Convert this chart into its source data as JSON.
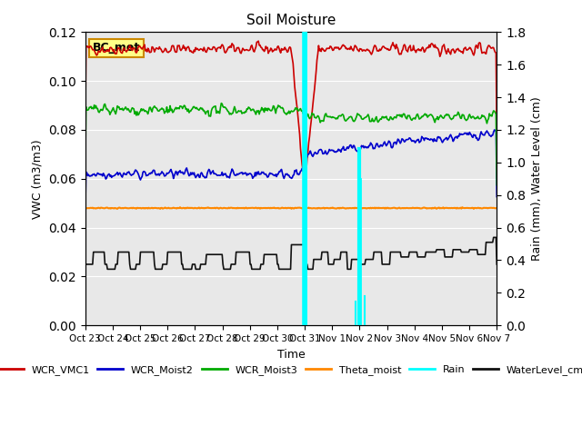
{
  "title": "Soil Moisture",
  "ylabel_left": "VWC (m3/m3)",
  "ylabel_right": "Rain (mm), Water Level (cm)",
  "xlabel": "Time",
  "ylim_left": [
    0.0,
    0.12
  ],
  "ylim_right": [
    0.0,
    1.8
  ],
  "annotation_text": "BC_met",
  "x_tick_labels": [
    "Oct 23",
    "Oct 24",
    "Oct 25",
    "Oct 26",
    "Oct 27",
    "Oct 28",
    "Oct 29",
    "Oct 30",
    "Oct 31",
    "Nov 1",
    "Nov 2",
    "Nov 3",
    "Nov 4",
    "Nov 5",
    "Nov 6",
    "Nov 7"
  ],
  "series": {
    "WCR_VMC1": {
      "color": "#cc0000",
      "lw": 1.2
    },
    "WCR_Moist2": {
      "color": "#0000cc",
      "lw": 1.2
    },
    "WCR_Moist3": {
      "color": "#00aa00",
      "lw": 1.2
    },
    "Theta_moist": {
      "color": "#ff8800",
      "lw": 1.5
    },
    "Rain": {
      "color": "#00ffff",
      "lw": 6
    },
    "WaterLevel_cm": {
      "color": "#111111",
      "lw": 1.2
    }
  },
  "rain_spike1_day": 8.0,
  "rain_spike2_day": 9.9,
  "n_points": 500,
  "total_days": 15
}
